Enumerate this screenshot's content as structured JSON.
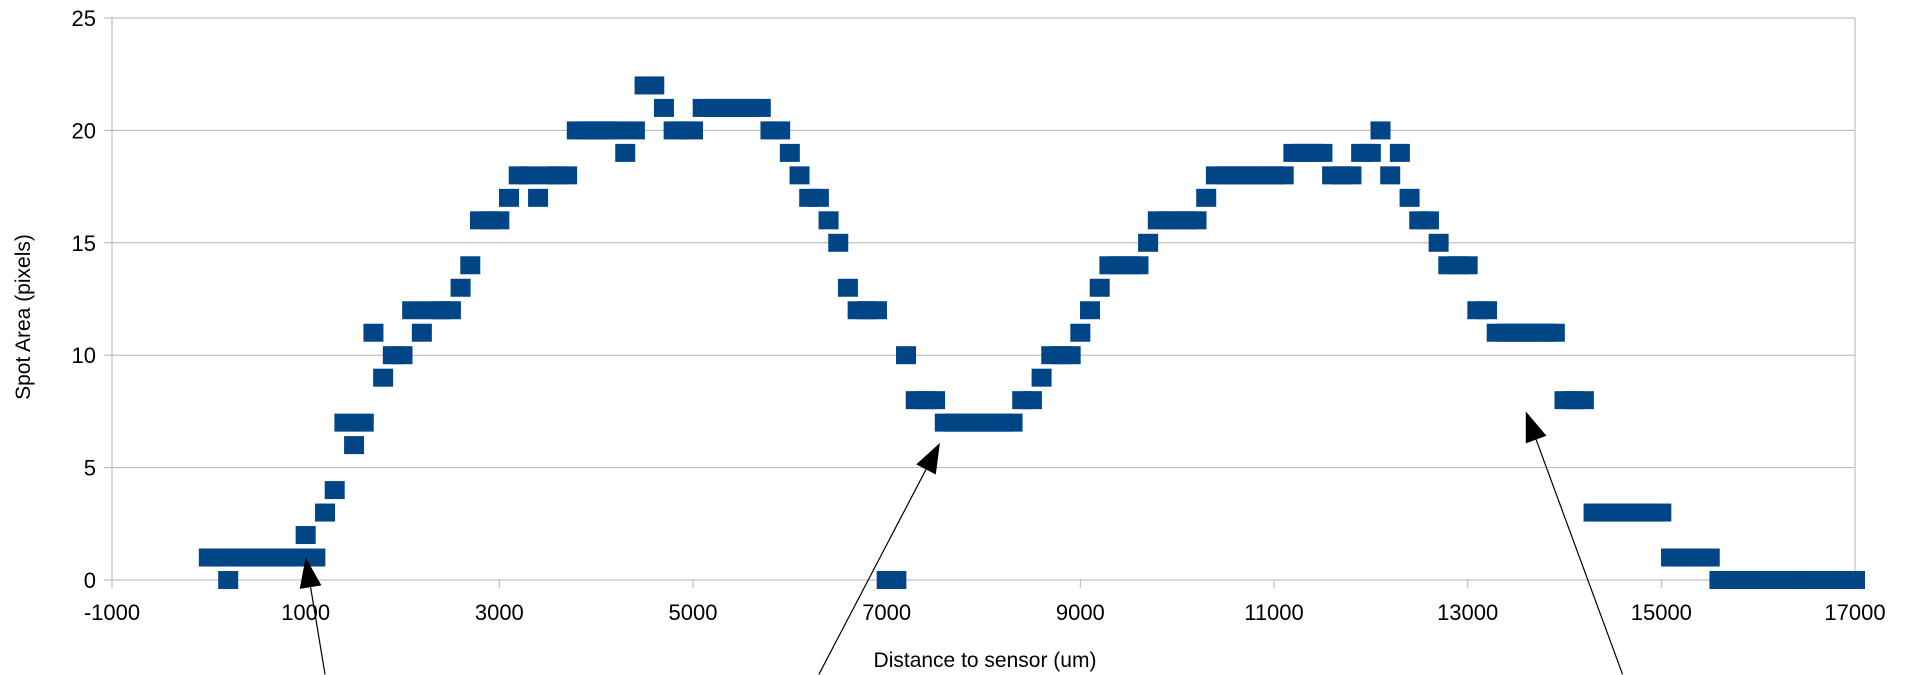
{
  "chart_data": {
    "type": "scatter",
    "title": "",
    "xlabel": "Distance to sensor (um)",
    "ylabel": "Spot Area (pixels)",
    "xlim": [
      -1000,
      17000
    ],
    "ylim": [
      0,
      25
    ],
    "xticks": [
      -1000,
      1000,
      3000,
      5000,
      7000,
      9000,
      11000,
      13000,
      15000,
      17000
    ],
    "yticks": [
      0,
      5,
      10,
      15,
      20,
      25
    ],
    "grid": "horizontal",
    "legend": "none",
    "marker": "square",
    "color": "#004586",
    "series": [
      {
        "x": [
          0,
          100,
          200,
          300,
          400,
          500,
          600,
          700,
          800,
          900,
          1000,
          1100,
          1200,
          1300,
          1400,
          1500,
          1600,
          1700,
          1800,
          1900,
          2000,
          2100,
          2200,
          2300,
          2400,
          2500,
          2600,
          2700,
          2800,
          2900,
          3000,
          3100,
          3200,
          3300,
          3400,
          3500,
          3600,
          3700,
          3800,
          3900,
          4000,
          4100,
          4200,
          4300,
          4400,
          4500,
          4600,
          4700,
          4800,
          4900,
          5000,
          5100,
          5200,
          5300,
          5400,
          5500,
          5600,
          5700,
          5800,
          5900,
          6000,
          6100,
          6200,
          6300,
          6400,
          6500,
          6600,
          6700,
          6800,
          6900,
          7000,
          7100,
          7200,
          7300,
          7400,
          7500,
          7600,
          7700,
          7800,
          7900,
          8000,
          8100,
          8200,
          8300,
          8400,
          8500,
          8600,
          8700,
          8800,
          8900,
          9000,
          9100,
          9200,
          9300,
          9400,
          9500,
          9600,
          9700,
          9800,
          9900,
          10000,
          10100,
          10200,
          10300,
          10400,
          10500,
          10600,
          10700,
          10800,
          10900,
          11000,
          11100,
          11200,
          11300,
          11400,
          11500,
          11600,
          11700,
          11800,
          11900,
          12000,
          12100,
          12200,
          12300,
          12400,
          12500,
          12600,
          12700,
          12800,
          12900,
          13000,
          13100,
          13200,
          13300,
          13400,
          13500,
          13600,
          13700,
          13800,
          13900,
          14000,
          14100,
          14200,
          14300,
          14400,
          14500,
          14600,
          14700,
          14800,
          14900,
          15000,
          15100,
          15200,
          15300,
          15400,
          15500,
          15600,
          15700,
          15800,
          15900,
          16000,
          16100,
          16200,
          16300,
          16400,
          16500,
          16600,
          16700,
          16800,
          16900,
          17000
        ],
        "y": [
          1,
          1,
          0,
          1,
          1,
          1,
          1,
          1,
          1,
          1,
          2,
          1,
          3,
          4,
          7,
          6,
          7,
          11,
          9,
          10,
          10,
          12,
          11,
          12,
          12,
          12,
          13,
          14,
          16,
          16,
          16,
          17,
          18,
          18,
          17,
          18,
          18,
          18,
          20,
          20,
          20,
          20,
          20,
          19,
          20,
          22,
          22,
          21,
          20,
          20,
          20,
          21,
          21,
          21,
          21,
          21,
          21,
          21,
          20,
          20,
          19,
          18,
          17,
          17,
          16,
          15,
          13,
          12,
          12,
          12,
          0,
          0,
          10,
          8,
          8,
          8,
          7,
          7,
          7,
          7,
          7,
          7,
          7,
          7,
          8,
          8,
          9,
          10,
          10,
          10,
          11,
          12,
          13,
          14,
          14,
          14,
          14,
          15,
          16,
          16,
          16,
          16,
          16,
          17,
          18,
          18,
          18,
          18,
          18,
          18,
          18,
          18,
          19,
          19,
          19,
          19,
          18,
          18,
          18,
          19,
          19,
          20,
          18,
          19,
          17,
          16,
          16,
          15,
          14,
          14,
          14,
          12,
          12,
          11,
          11,
          11,
          11,
          11,
          11,
          11,
          8,
          8,
          8,
          3,
          3,
          3,
          3,
          3,
          3,
          3,
          3,
          1,
          1,
          1,
          1,
          1,
          0,
          0,
          0,
          0,
          0,
          0,
          0,
          0,
          0,
          0,
          0,
          0,
          0,
          0,
          0
        ]
      }
    ],
    "annotations": [
      {
        "type": "arrow",
        "from": {
          "x": 1200,
          "y": -4.2
        },
        "to": {
          "x": 1000,
          "y": 1.0
        }
      },
      {
        "type": "arrow",
        "from": {
          "x": 6300,
          "y": -4.2
        },
        "to": {
          "x": 7550,
          "y": 6.1
        }
      },
      {
        "type": "arrow",
        "from": {
          "x": 14600,
          "y": -4.2
        },
        "to": {
          "x": 13600,
          "y": 7.5
        }
      }
    ]
  }
}
